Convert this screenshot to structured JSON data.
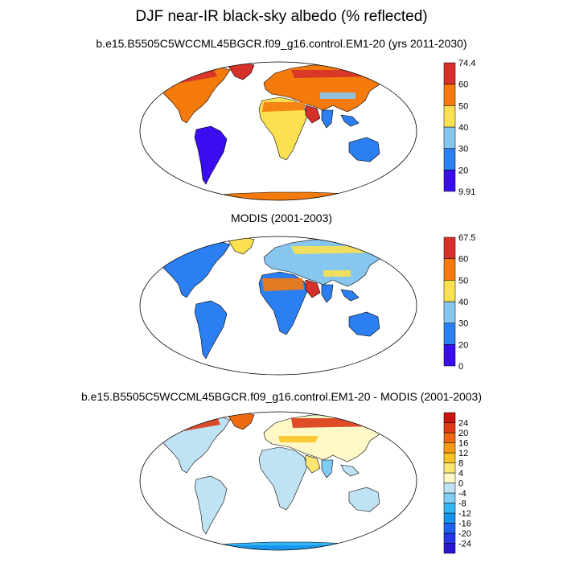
{
  "title": "DJF near-IR black-sky albedo (% reflected)",
  "panels": [
    {
      "subtitle": "b.e15.B5505C5WCCML45BGCR.f09_g16.control.EM1-20 (yrs 2011-2030)",
      "colorbar": {
        "colors": [
          "#3a0df0",
          "#2b7ff2",
          "#87c6ef",
          "#fbe050",
          "#f57a0c",
          "#d6302a"
        ],
        "labels": [
          "9.91",
          "20",
          "30",
          "40",
          "50",
          "60",
          "74.4"
        ]
      }
    },
    {
      "subtitle": "MODIS (2001-2003)",
      "colorbar": {
        "colors": [
          "#3a0df0",
          "#2b7ff2",
          "#87c6ef",
          "#fbe050",
          "#f57a0c",
          "#d6302a"
        ],
        "labels": [
          "0",
          "20",
          "30",
          "40",
          "50",
          "60",
          "67.5"
        ]
      }
    },
    {
      "subtitle": "b.e15.B5505C5WCCML45BGCR.f09_g16.control.EM1-20 - MODIS (2001-2003)",
      "colorbar": {
        "colors": [
          "#2a14d4",
          "#2436e8",
          "#1f62f0",
          "#1493ef",
          "#32b5f2",
          "#7fcdf2",
          "#bfe3f4",
          "#fff9c8",
          "#fbe672",
          "#fbc326",
          "#f79a14",
          "#ee6a12",
          "#dc3a16",
          "#c81512"
        ],
        "labels": [
          "-24",
          "-20",
          "-16",
          "-12",
          "-8",
          "-4",
          "0",
          "4",
          "8",
          "12",
          "16",
          "20",
          "24"
        ]
      }
    }
  ]
}
